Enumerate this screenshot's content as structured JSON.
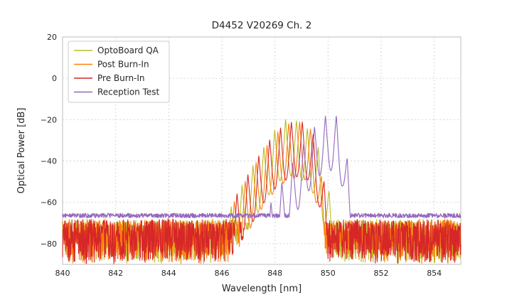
{
  "figure": {
    "title": "D4452 V20269 Ch. 2"
  },
  "chart_data": {
    "type": "line",
    "title": "D4452 V20269 Ch. 2",
    "xlabel": "Wavelength [nm]",
    "ylabel": "Optical Power [dB]",
    "xlim": [
      840,
      855
    ],
    "ylim": [
      -90,
      20
    ],
    "xticks": [
      840,
      842,
      844,
      846,
      848,
      850,
      852,
      854
    ],
    "yticks": [
      20,
      0,
      -20,
      -40,
      -60,
      -80
    ],
    "grid": true,
    "grid_color": "#d2d2d2",
    "spine_color": "#c9c9c9",
    "tick_label_color": "#3b3b3b",
    "legend_position": "upper left",
    "legend_labels": [
      "OptoBoard QA",
      "Post Burn-In",
      "Pre Burn-In",
      "Reception Test"
    ],
    "series": [
      {
        "name": "OptoBoard QA",
        "color": "#bcbd22",
        "seed": 101,
        "noise": {
          "type": "spiky",
          "base": -69,
          "spread": 20
        },
        "envelope": [
          [
            846.0,
            -72
          ],
          [
            846.5,
            -58
          ],
          [
            847.0,
            -46
          ],
          [
            847.5,
            -35
          ],
          [
            848.0,
            -25
          ],
          [
            848.4,
            -20
          ],
          [
            848.8,
            -20.5
          ],
          [
            849.2,
            -24
          ],
          [
            849.6,
            -32
          ],
          [
            850.0,
            -52
          ],
          [
            850.45,
            -82
          ]
        ],
        "modes": {
          "phase": 848.4,
          "spacing": 0.41,
          "depth": 27,
          "exp": 0.6
        }
      },
      {
        "name": "Post Burn-In",
        "color": "#ff7f0e",
        "seed": 202,
        "noise": {
          "type": "spiky",
          "base": -69,
          "spread": 20
        },
        "envelope": [
          [
            846.1,
            -70
          ],
          [
            846.6,
            -56
          ],
          [
            847.1,
            -45
          ],
          [
            847.6,
            -34
          ],
          [
            848.1,
            -26
          ],
          [
            848.5,
            -22
          ],
          [
            848.9,
            -21
          ],
          [
            849.3,
            -23
          ],
          [
            849.6,
            -35
          ],
          [
            849.9,
            -60
          ],
          [
            850.1,
            -82
          ]
        ],
        "modes": {
          "phase": 848.52,
          "spacing": 0.41,
          "depth": 27,
          "exp": 0.6
        }
      },
      {
        "name": "Pre Burn-In",
        "color": "#d62728",
        "seed": 303,
        "noise": {
          "type": "spiky",
          "base": -69,
          "spread": 20
        },
        "envelope": [
          [
            846.1,
            -70
          ],
          [
            846.6,
            -55
          ],
          [
            847.1,
            -44
          ],
          [
            847.6,
            -33
          ],
          [
            848.1,
            -25
          ],
          [
            848.5,
            -21.5
          ],
          [
            848.9,
            -20.5
          ],
          [
            849.3,
            -22.5
          ],
          [
            849.65,
            -34
          ],
          [
            849.95,
            -58
          ],
          [
            850.15,
            -82
          ]
        ],
        "modes": {
          "phase": 848.62,
          "spacing": 0.41,
          "depth": 27,
          "exp": 0.6
        }
      },
      {
        "name": "Reception Test",
        "color": "#9467bd",
        "seed": 404,
        "noise": {
          "type": "smooth",
          "base": -66.4,
          "spread": 2.2
        },
        "envelope": [
          [
            847.6,
            -66
          ],
          [
            848.2,
            -52
          ],
          [
            848.8,
            -38
          ],
          [
            849.3,
            -27
          ],
          [
            849.7,
            -20
          ],
          [
            850.0,
            -17.5
          ],
          [
            850.3,
            -18
          ],
          [
            850.55,
            -26
          ],
          [
            850.8,
            -45
          ],
          [
            851.0,
            -58
          ],
          [
            851.15,
            -66.4
          ]
        ],
        "modes": {
          "phase": 849.9,
          "spacing": 0.41,
          "depth": 27,
          "exp": 0.6
        }
      }
    ]
  }
}
